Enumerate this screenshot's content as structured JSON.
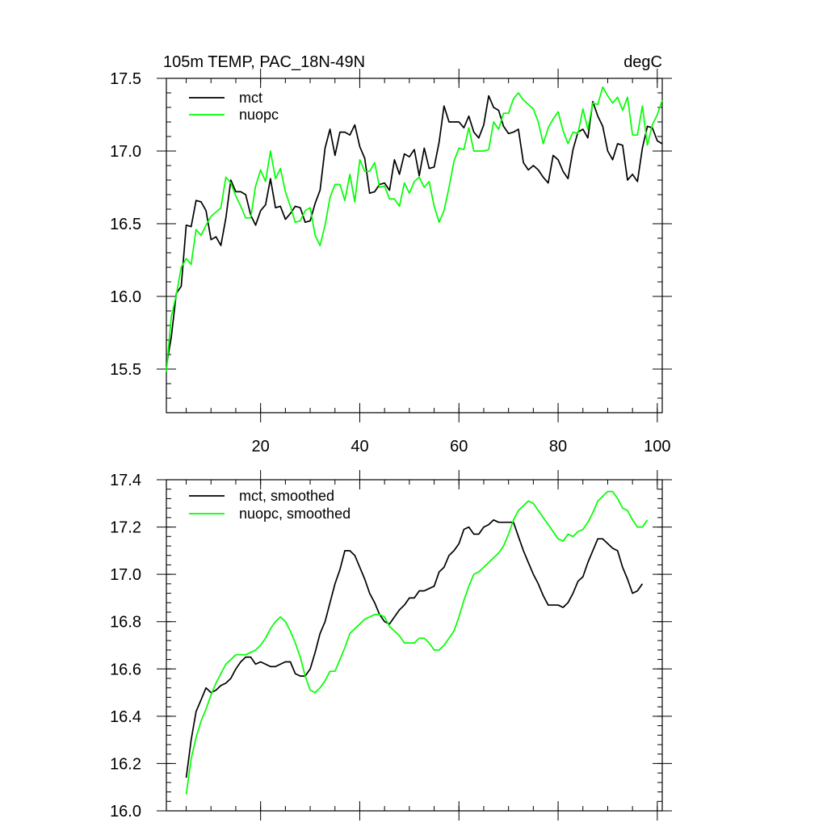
{
  "chart_data": [
    {
      "type": "line",
      "title_left": "105m TEMP, PAC_18N-49N",
      "title_right": "degC",
      "xlim": [
        1,
        101
      ],
      "ylim": [
        15.2,
        17.5
      ],
      "xticks": [
        20,
        40,
        60,
        80,
        100
      ],
      "xtick_labels": [
        "20",
        "40",
        "60",
        "80",
        "100"
      ],
      "yticks": [
        15.5,
        16.0,
        16.5,
        17.0,
        17.5
      ],
      "ytick_labels": [
        "15.5",
        "16.0",
        "16.5",
        "17.0",
        "17.5"
      ],
      "legend_position": "top-left",
      "series": [
        {
          "name": "mct",
          "color": "#000000",
          "x": [
            1,
            2,
            3,
            4,
            5,
            6,
            7,
            8,
            9,
            10,
            11,
            12,
            13,
            14,
            15,
            16,
            17,
            18,
            19,
            20,
            21,
            22,
            23,
            24,
            25,
            26,
            27,
            28,
            29,
            30,
            31,
            32,
            33,
            34,
            35,
            36,
            37,
            38,
            39,
            40,
            41,
            42,
            43,
            44,
            45,
            46,
            47,
            48,
            49,
            50,
            51,
            52,
            53,
            54,
            55,
            56,
            57,
            58,
            59,
            60,
            61,
            62,
            63,
            64,
            65,
            66,
            67,
            68,
            69,
            70,
            71,
            72,
            73,
            74,
            75,
            76,
            77,
            78,
            79,
            80,
            81,
            82,
            83,
            84,
            85,
            86,
            87,
            88,
            89,
            90,
            91,
            92,
            93,
            94,
            95,
            96,
            97,
            98,
            99,
            100,
            101
          ],
          "values": [
            15.52,
            15.72,
            16.02,
            16.07,
            16.49,
            16.48,
            16.66,
            16.65,
            16.59,
            16.39,
            16.41,
            16.35,
            16.54,
            16.8,
            16.72,
            16.72,
            16.7,
            16.56,
            16.49,
            16.59,
            16.63,
            16.81,
            16.61,
            16.62,
            16.53,
            16.57,
            16.62,
            16.61,
            16.51,
            16.52,
            16.64,
            16.73,
            17.02,
            17.15,
            16.97,
            17.13,
            17.13,
            17.11,
            17.18,
            17.03,
            16.95,
            16.71,
            16.72,
            16.77,
            16.78,
            16.73,
            16.94,
            16.84,
            16.98,
            16.96,
            17.01,
            16.83,
            17.02,
            16.88,
            16.89,
            17.06,
            17.31,
            17.2,
            17.2,
            17.2,
            17.16,
            17.24,
            17.13,
            17.09,
            17.18,
            17.38,
            17.3,
            17.28,
            17.17,
            17.12,
            17.13,
            17.15,
            16.92,
            16.87,
            16.9,
            16.87,
            16.82,
            16.78,
            16.97,
            16.94,
            16.86,
            16.81,
            17.01,
            17.13,
            17.15,
            17.09,
            17.34,
            17.24,
            17.17,
            17.0,
            16.94,
            17.05,
            17.04,
            16.8,
            16.84,
            16.79,
            17.02,
            17.17,
            17.16,
            17.07,
            17.05
          ]
        },
        {
          "name": "nuopc",
          "color": "#00ff00",
          "x": [
            1,
            2,
            3,
            4,
            5,
            6,
            7,
            8,
            9,
            10,
            11,
            12,
            13,
            14,
            15,
            16,
            17,
            18,
            19,
            20,
            21,
            22,
            23,
            24,
            25,
            26,
            27,
            28,
            29,
            30,
            31,
            32,
            33,
            34,
            35,
            36,
            37,
            38,
            39,
            40,
            41,
            42,
            43,
            44,
            45,
            46,
            47,
            48,
            49,
            50,
            51,
            52,
            53,
            54,
            55,
            56,
            57,
            58,
            59,
            60,
            61,
            62,
            63,
            64,
            65,
            66,
            67,
            68,
            69,
            70,
            71,
            72,
            73,
            74,
            75,
            76,
            77,
            78,
            79,
            80,
            81,
            82,
            83,
            84,
            85,
            86,
            87,
            88,
            89,
            90,
            91,
            92,
            93,
            94,
            95,
            96,
            97,
            98,
            99,
            100,
            101
          ],
          "values": [
            15.48,
            15.86,
            16.01,
            16.2,
            16.26,
            16.22,
            16.46,
            16.42,
            16.49,
            16.55,
            16.58,
            16.61,
            16.82,
            16.78,
            16.69,
            16.62,
            16.54,
            16.54,
            16.76,
            16.87,
            16.79,
            17.0,
            16.81,
            16.88,
            16.72,
            16.62,
            16.51,
            16.52,
            16.59,
            16.61,
            16.42,
            16.35,
            16.49,
            16.68,
            16.77,
            16.77,
            16.66,
            16.84,
            16.65,
            16.94,
            16.86,
            16.86,
            16.92,
            16.75,
            16.76,
            16.67,
            16.67,
            16.62,
            16.78,
            16.71,
            16.79,
            16.82,
            16.75,
            16.79,
            16.62,
            16.51,
            16.59,
            16.75,
            16.93,
            17.02,
            17.01,
            17.16,
            17.0,
            17.0,
            17.0,
            17.01,
            17.2,
            17.15,
            17.26,
            17.26,
            17.36,
            17.4,
            17.35,
            17.32,
            17.29,
            17.2,
            17.05,
            17.16,
            17.22,
            17.27,
            17.14,
            17.05,
            17.13,
            17.12,
            17.29,
            17.15,
            17.33,
            17.32,
            17.44,
            17.38,
            17.33,
            17.37,
            17.28,
            17.37,
            17.11,
            17.11,
            17.31,
            17.04,
            17.18,
            17.25,
            17.35
          ]
        }
      ]
    },
    {
      "type": "line",
      "xlim": [
        1,
        101
      ],
      "ylim": [
        16.0,
        17.4
      ],
      "xticks": [
        20,
        40,
        60,
        80,
        100
      ],
      "xtick_labels": [
        "",
        "",
        "",
        "",
        ""
      ],
      "yticks": [
        16.0,
        16.2,
        16.4,
        16.6,
        16.8,
        17.0,
        17.2,
        17.4
      ],
      "ytick_labels": [
        "16.0",
        "16.2",
        "16.4",
        "16.6",
        "16.8",
        "17.0",
        "17.2",
        "17.4"
      ],
      "legend_position": "top-left",
      "series": [
        {
          "name": "mct, smoothed",
          "color": "#000000",
          "x": [
            5,
            6,
            7,
            8,
            9,
            10,
            11,
            12,
            13,
            14,
            15,
            16,
            17,
            18,
            19,
            20,
            21,
            22,
            23,
            24,
            25,
            26,
            27,
            28,
            29,
            30,
            31,
            32,
            33,
            34,
            35,
            36,
            37,
            38,
            39,
            40,
            41,
            42,
            43,
            44,
            45,
            46,
            47,
            48,
            49,
            50,
            51,
            52,
            53,
            54,
            55,
            56,
            57,
            58,
            59,
            60,
            61,
            62,
            63,
            64,
            65,
            66,
            67,
            68,
            69,
            70,
            71,
            72,
            73,
            74,
            75,
            76,
            77,
            78,
            79,
            80,
            81,
            82,
            83,
            84,
            85,
            86,
            87,
            88,
            89,
            90,
            91,
            92,
            93,
            94,
            95,
            96,
            97
          ],
          "values": [
            16.14,
            16.3,
            16.42,
            16.47,
            16.52,
            16.5,
            16.51,
            16.53,
            16.54,
            16.56,
            16.6,
            16.63,
            16.65,
            16.65,
            16.62,
            16.63,
            16.62,
            16.61,
            16.61,
            16.62,
            16.63,
            16.63,
            16.58,
            16.57,
            16.57,
            16.6,
            16.67,
            16.75,
            16.8,
            16.88,
            16.96,
            17.02,
            17.1,
            17.1,
            17.08,
            17.03,
            16.98,
            16.92,
            16.88,
            16.83,
            16.8,
            16.79,
            16.82,
            16.85,
            16.87,
            16.9,
            16.9,
            16.93,
            16.93,
            16.94,
            16.95,
            17.01,
            17.03,
            17.08,
            17.1,
            17.13,
            17.19,
            17.2,
            17.17,
            17.17,
            17.2,
            17.21,
            17.23,
            17.22,
            17.22,
            17.22,
            17.22,
            17.16,
            17.1,
            17.05,
            17.0,
            16.96,
            16.91,
            16.87,
            16.87,
            16.87,
            16.86,
            16.88,
            16.92,
            16.97,
            16.99,
            17.05,
            17.1,
            17.15,
            17.15,
            17.13,
            17.11,
            17.1,
            17.03,
            16.98,
            16.92,
            16.93,
            16.96
          ]
        },
        {
          "name": "nuopc, smoothed",
          "color": "#00ff00",
          "x": [
            5,
            6,
            7,
            8,
            9,
            10,
            11,
            12,
            13,
            14,
            15,
            16,
            17,
            18,
            19,
            20,
            21,
            22,
            23,
            24,
            25,
            26,
            27,
            28,
            29,
            30,
            31,
            32,
            33,
            34,
            35,
            36,
            37,
            38,
            39,
            40,
            41,
            42,
            43,
            44,
            45,
            46,
            47,
            48,
            49,
            50,
            51,
            52,
            53,
            54,
            55,
            56,
            57,
            58,
            59,
            60,
            61,
            62,
            63,
            64,
            65,
            66,
            67,
            68,
            69,
            70,
            71,
            72,
            73,
            74,
            75,
            76,
            77,
            78,
            79,
            80,
            81,
            82,
            83,
            84,
            85,
            86,
            87,
            88,
            89,
            90,
            91,
            92,
            93,
            94,
            95,
            96,
            97,
            98
          ],
          "values": [
            16.07,
            16.22,
            16.31,
            16.38,
            16.43,
            16.49,
            16.54,
            16.58,
            16.62,
            16.64,
            16.66,
            16.66,
            16.66,
            16.67,
            16.68,
            16.7,
            16.73,
            16.77,
            16.8,
            16.82,
            16.8,
            16.76,
            16.71,
            16.65,
            16.57,
            16.51,
            16.5,
            16.52,
            16.55,
            16.59,
            16.59,
            16.64,
            16.69,
            16.75,
            16.77,
            16.79,
            16.81,
            16.82,
            16.83,
            16.83,
            16.82,
            16.78,
            16.76,
            16.74,
            16.71,
            16.71,
            16.71,
            16.73,
            16.73,
            16.71,
            16.68,
            16.68,
            16.7,
            16.73,
            16.76,
            16.82,
            16.89,
            16.95,
            17.0,
            17.01,
            17.03,
            17.05,
            17.07,
            17.09,
            17.12,
            17.17,
            17.23,
            17.27,
            17.29,
            17.31,
            17.3,
            17.27,
            17.24,
            17.21,
            17.18,
            17.15,
            17.14,
            17.17,
            17.16,
            17.18,
            17.19,
            17.22,
            17.26,
            17.31,
            17.33,
            17.35,
            17.35,
            17.32,
            17.28,
            17.27,
            17.23,
            17.2,
            17.2,
            17.23
          ]
        }
      ]
    }
  ]
}
